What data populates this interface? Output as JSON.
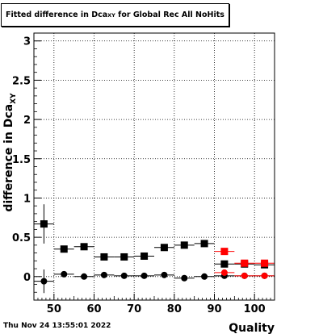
{
  "chart_data": {
    "type": "scatter",
    "title_main": "Fitted difference in Dca",
    "title_sub": "XY",
    "title_tail": " for Global Rec All NoHits",
    "xlabel": "Quality",
    "ylabel": "difference in Dca",
    "ylabel_sub": "XY",
    "xlim": [
      45,
      105
    ],
    "ylim": [
      -0.3,
      3.1
    ],
    "xticks": [
      50,
      60,
      70,
      80,
      90,
      100
    ],
    "yticks": [
      0,
      0.5,
      1,
      1.5,
      2,
      2.5,
      3
    ],
    "ytick_labels": [
      "0",
      "0.5",
      "1",
      "1.5",
      "2",
      "2.5",
      "3"
    ],
    "grid": true,
    "series": [
      {
        "color": "#000000",
        "marker": "square",
        "x": [
          47.5,
          52.5,
          57.5,
          62.5,
          67.5,
          72.5,
          77.5,
          82.5,
          87.5,
          92.5,
          97.5,
          102.5
        ],
        "y": [
          0.67,
          0.35,
          0.38,
          0.25,
          0.25,
          0.26,
          0.37,
          0.4,
          0.42,
          0.16,
          0.16,
          0.15
        ],
        "yerr": [
          0.25,
          0.04,
          0.03,
          0.02,
          0.02,
          0.02,
          0.04,
          0.03,
          0.03,
          0.02,
          0.02,
          0.02
        ]
      },
      {
        "color": "#000000",
        "marker": "circle",
        "x": [
          47.5,
          52.5,
          57.5,
          62.5,
          67.5,
          72.5,
          77.5,
          82.5,
          87.5,
          92.5,
          97.5,
          102.5
        ],
        "y": [
          -0.06,
          0.03,
          0.0,
          0.02,
          0.01,
          0.01,
          0.02,
          -0.02,
          0.0,
          0.01,
          0.01,
          0.01
        ],
        "yerr": [
          0.15,
          0.03,
          0.02,
          0.02,
          0.02,
          0.02,
          0.02,
          0.02,
          0.02,
          0.01,
          0.01,
          0.01
        ]
      },
      {
        "color": "#ff0000",
        "marker": "square",
        "x": [
          92.5,
          97.5,
          102.5
        ],
        "y": [
          0.32,
          0.17,
          0.17
        ],
        "yerr": [
          0.02,
          0.02,
          0.02
        ]
      },
      {
        "color": "#ff0000",
        "marker": "circle",
        "x": [
          92.5,
          97.5,
          102.5
        ],
        "y": [
          0.05,
          0.01,
          0.01
        ],
        "yerr": [
          0.01,
          0.01,
          0.01
        ]
      }
    ]
  },
  "footer": {
    "timestamp": "Thu Nov 24 13:55:01 2022"
  }
}
